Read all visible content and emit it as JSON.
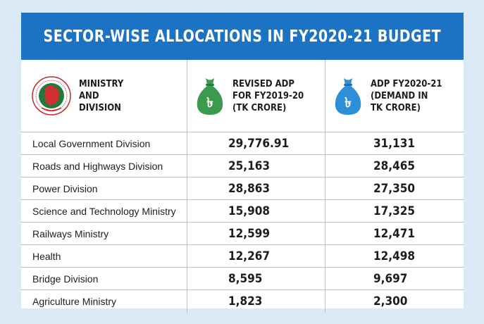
{
  "title": "SECTOR-WISE ALLOCATIONS IN FY2020-21 BUDGET",
  "colors": {
    "banner": "#1c73c4",
    "background": "#dbe9f6",
    "bag_green": "#3a9b4f",
    "bag_blue": "#2f8fd6"
  },
  "headers": {
    "ministry": "MINISTRY\nAND\nDIVISION",
    "revised": "REVISED ADP\nFOR FY2019-20\n(TK CRORE)",
    "adp": "ADP FY2020-21\n(DEMAND IN\nTK CRORE)"
  },
  "icons": {
    "emblem": "bangladesh-government-emblem",
    "revised": "money-bag-icon-green",
    "adp": "money-bag-icon-blue",
    "currency_glyph": "৳"
  },
  "rows": [
    {
      "name": "Local Government Division",
      "revised": "29,776.91",
      "adp": "31,131"
    },
    {
      "name": "Roads and Highways Division",
      "revised": "25,163",
      "adp": "28,465"
    },
    {
      "name": "Power Division",
      "revised": "28,863",
      "adp": "27,350"
    },
    {
      "name": "Science and Technology Ministry",
      "revised": "15,908",
      "adp": "17,325"
    },
    {
      "name": "Railways Ministry",
      "revised": "12,599",
      "adp": "12,471"
    },
    {
      "name": "Health",
      "revised": "12,267",
      "adp": "12,498"
    },
    {
      "name": "Bridge Division",
      "revised": "8,595",
      "adp": "9,697"
    },
    {
      "name": "Agriculture Ministry",
      "revised": "1,823",
      "adp": "2,300"
    }
  ]
}
